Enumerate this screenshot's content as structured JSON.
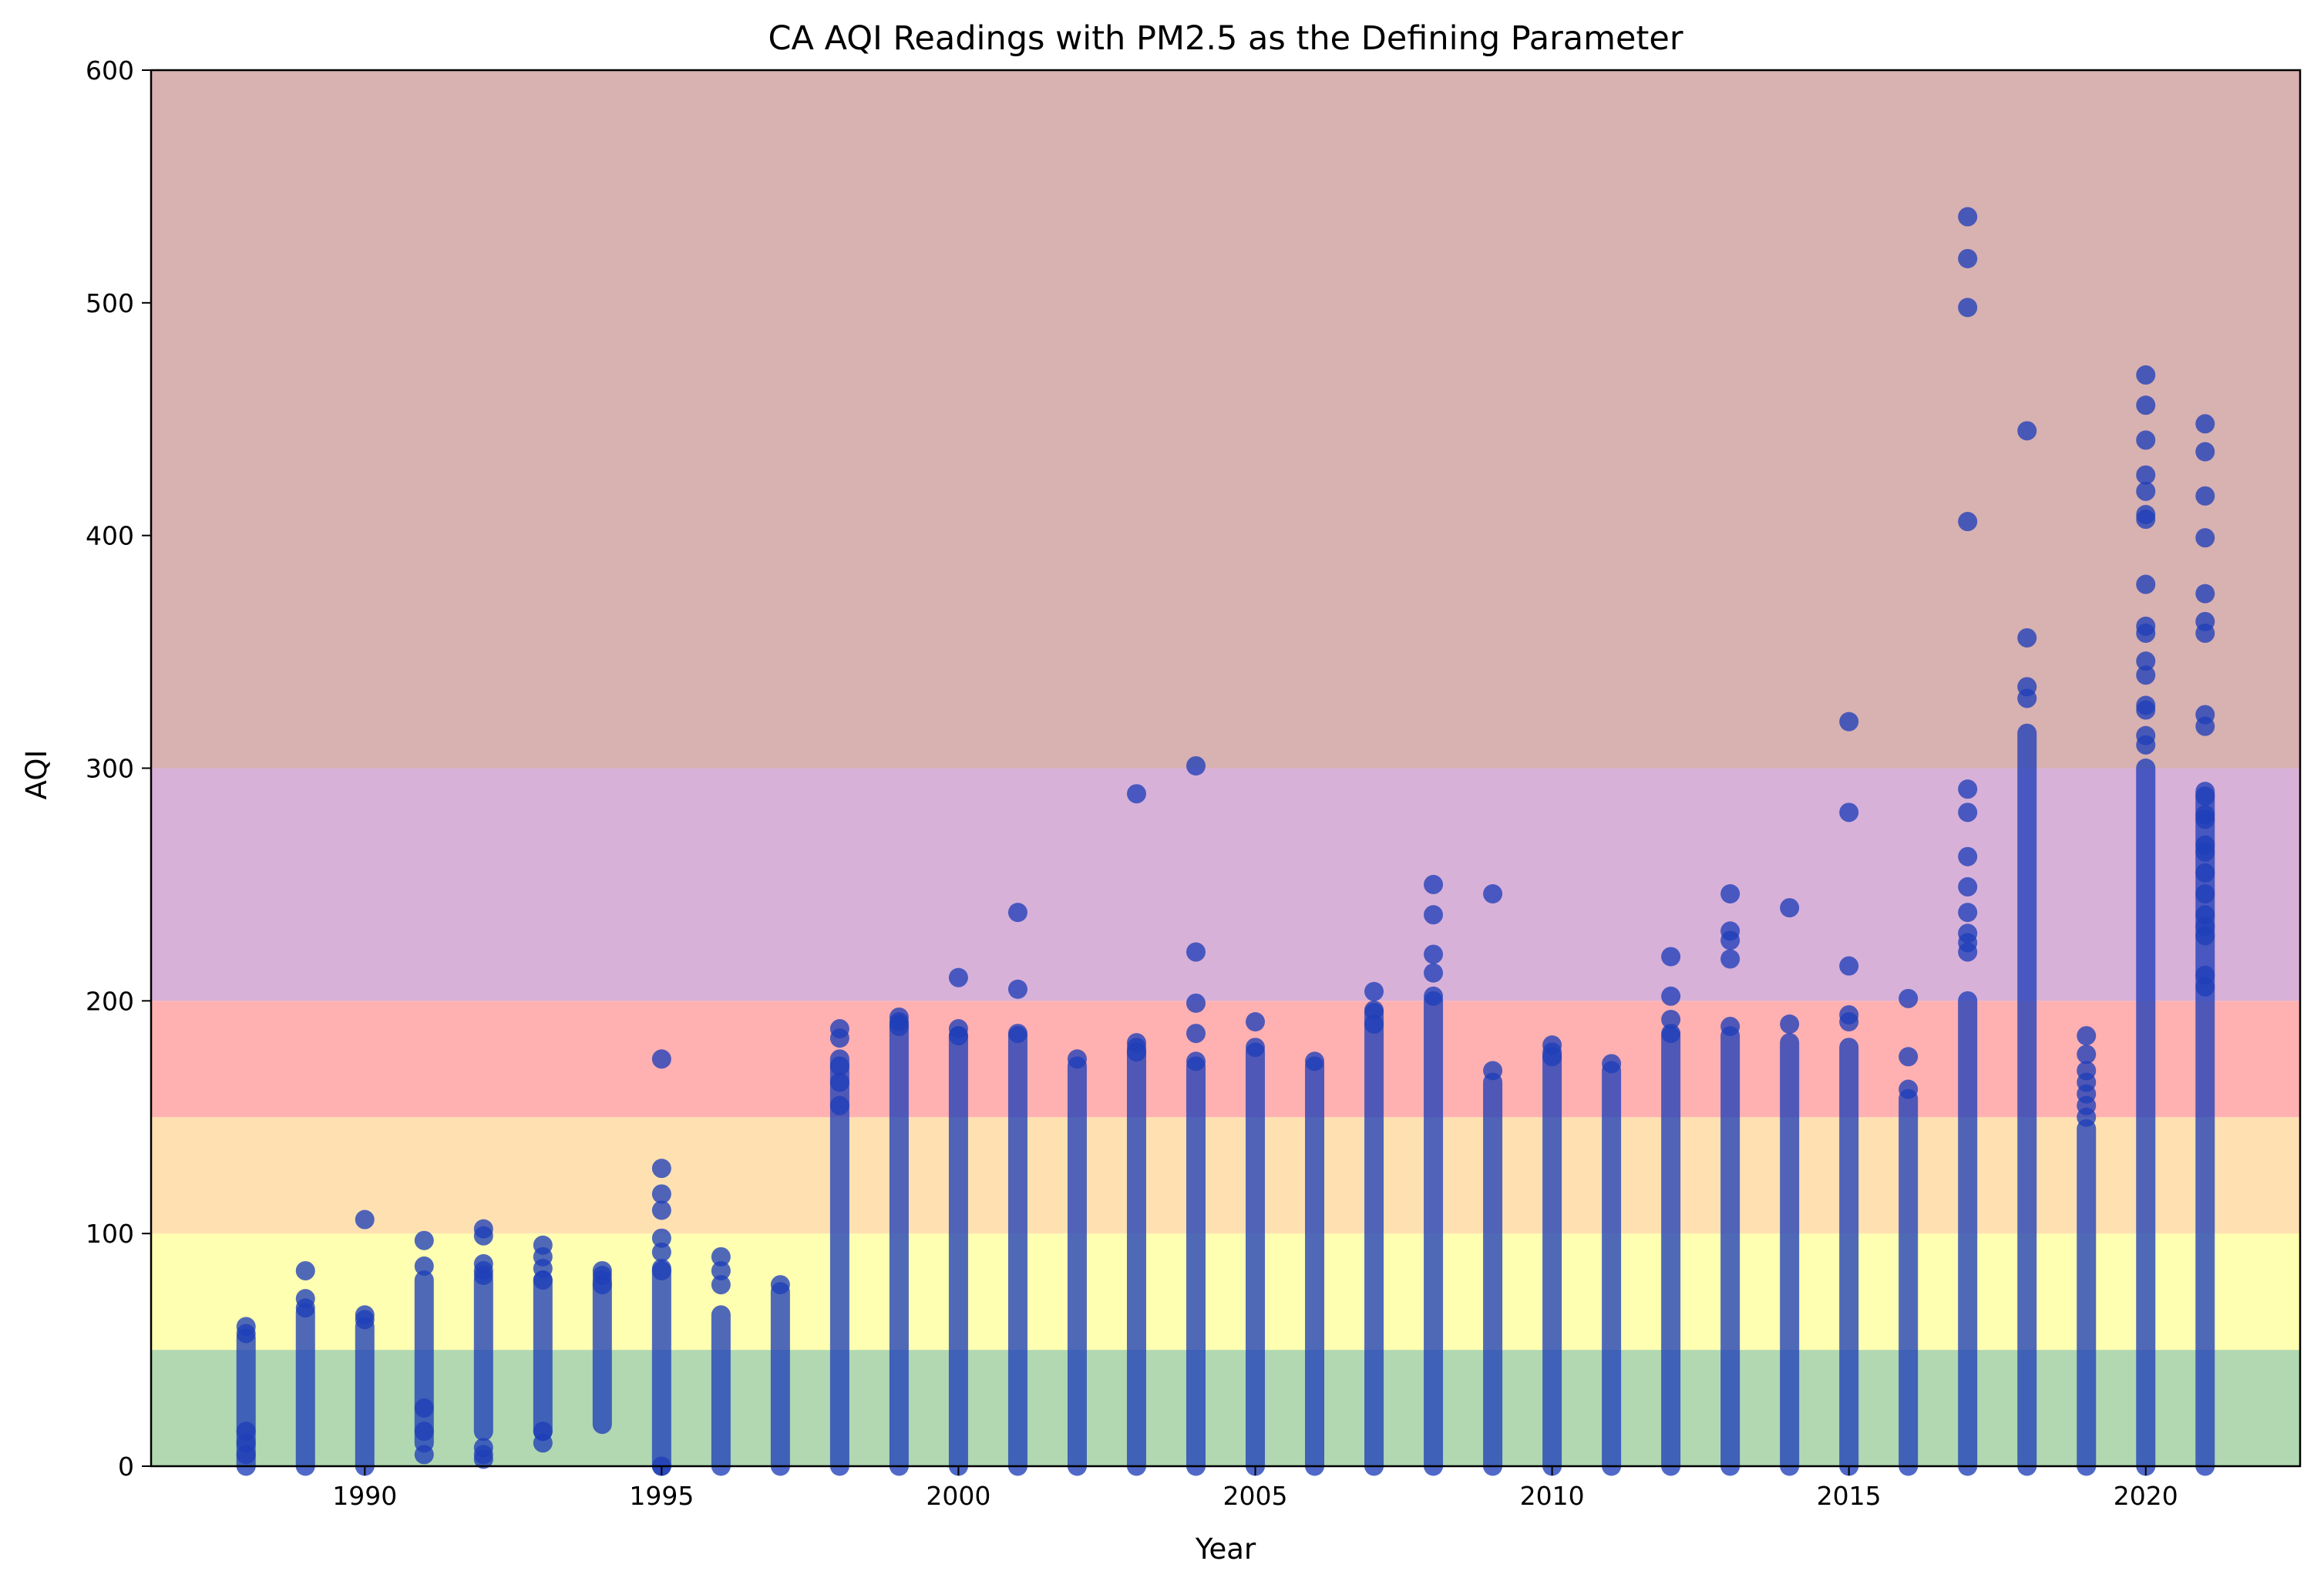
{
  "chart_data": {
    "type": "scatter",
    "title": "CA AQI Readings with PM2.5 as the Defining Parameter",
    "xlabel": "Year",
    "ylabel": "AQI",
    "xlim": [
      1986.4,
      2022.6
    ],
    "ylim": [
      0,
      600
    ],
    "xticks": [
      1990,
      1995,
      2000,
      2005,
      2010,
      2015,
      2020
    ],
    "yticks": [
      0,
      100,
      200,
      300,
      400,
      500,
      600
    ],
    "grid": false,
    "legend": "none",
    "point_color": "#1f3fb8",
    "point_alpha": 0.78,
    "bands": [
      {
        "from": 0,
        "to": 50,
        "color": "#b1d8b1"
      },
      {
        "from": 50,
        "to": 100,
        "color": "#ffffb1"
      },
      {
        "from": 100,
        "to": 150,
        "color": "#ffe1b1"
      },
      {
        "from": 150,
        "to": 200,
        "color": "#ffb1b1"
      },
      {
        "from": 200,
        "to": 300,
        "color": "#d8b1d8"
      },
      {
        "from": 300,
        "to": 600,
        "color": "#d8b1b1"
      }
    ],
    "series": [
      {
        "points": [
          {
            "year": 1988,
            "dense": [
              0,
              55
            ],
            "extra": [
              60,
              57,
              5,
              10,
              15
            ]
          },
          {
            "year": 1989,
            "dense": [
              0,
              66
            ],
            "extra": [
              84,
              72,
              68
            ]
          },
          {
            "year": 1990,
            "dense": [
              0,
              60
            ],
            "extra": [
              106,
              65,
              63
            ]
          },
          {
            "year": 1991,
            "dense": [
              10,
              80
            ],
            "extra": [
              97,
              86,
              5,
              15,
              25
            ]
          },
          {
            "year": 1992,
            "dense": [
              15,
              80
            ],
            "extra": [
              102,
              99,
              87,
              84,
              82,
              5,
              8,
              3
            ]
          },
          {
            "year": 1993,
            "dense": [
              15,
              80
            ],
            "extra": [
              95,
              90,
              85,
              80,
              10,
              15
            ]
          },
          {
            "year": 1994,
            "dense": [
              18,
              80
            ],
            "extra": [
              84,
              82,
              78
            ]
          },
          {
            "year": 1995,
            "dense": [
              0,
              85
            ],
            "extra": [
              175,
              128,
              117,
              110,
              98,
              92,
              84,
              0
            ]
          },
          {
            "year": 1996,
            "dense": [
              0,
              65
            ],
            "extra": [
              90,
              84,
              78
            ]
          },
          {
            "year": 1997,
            "dense": [
              0,
              75
            ],
            "extra": [
              78
            ]
          },
          {
            "year": 1998,
            "dense": [
              0,
              175
            ],
            "extra": [
              188,
              184,
              172,
              165,
              155
            ]
          },
          {
            "year": 1999,
            "dense": [
              0,
              190
            ],
            "extra": [
              193,
              191,
              189
            ]
          },
          {
            "year": 2000,
            "dense": [
              0,
              185
            ],
            "extra": [
              210,
              188,
              185
            ]
          },
          {
            "year": 2001,
            "dense": [
              0,
              185
            ],
            "extra": [
              238,
              205,
              186
            ]
          },
          {
            "year": 2002,
            "dense": [
              0,
              172
            ],
            "extra": [
              175
            ]
          },
          {
            "year": 2003,
            "dense": [
              0,
              180
            ],
            "extra": [
              289,
              182,
              178
            ]
          },
          {
            "year": 2004,
            "dense": [
              0,
              172
            ],
            "extra": [
              301,
              221,
              199,
              186,
              174
            ]
          },
          {
            "year": 2005,
            "dense": [
              0,
              178
            ],
            "extra": [
              191,
              180
            ]
          },
          {
            "year": 2006,
            "dense": [
              0,
              172
            ],
            "extra": [
              174
            ]
          },
          {
            "year": 2007,
            "dense": [
              0,
              195
            ],
            "extra": [
              204,
              196,
              190
            ]
          },
          {
            "year": 2008,
            "dense": [
              0,
              200
            ],
            "extra": [
              250,
              237,
              220,
              212,
              202
            ]
          },
          {
            "year": 2009,
            "dense": [
              0,
              165
            ],
            "extra": [
              246,
              170
            ]
          },
          {
            "year": 2010,
            "dense": [
              0,
              178
            ],
            "extra": [
              181,
              176
            ]
          },
          {
            "year": 2011,
            "dense": [
              0,
              170
            ],
            "extra": [
              173
            ]
          },
          {
            "year": 2012,
            "dense": [
              0,
              185
            ],
            "extra": [
              219,
              202,
              192,
              186
            ]
          },
          {
            "year": 2013,
            "dense": [
              0,
              185
            ],
            "extra": [
              246,
              230,
              226,
              218,
              189
            ]
          },
          {
            "year": 2014,
            "dense": [
              0,
              182
            ],
            "extra": [
              240,
              190
            ]
          },
          {
            "year": 2015,
            "dense": [
              0,
              180
            ],
            "extra": [
              320,
              281,
              215,
              194,
              191
            ]
          },
          {
            "year": 2016,
            "dense": [
              0,
              158
            ],
            "extra": [
              201,
              176,
              162
            ]
          },
          {
            "year": 2017,
            "dense": [
              0,
              200
            ],
            "extra": [
              537,
              519,
              498,
              406,
              291,
              281,
              262,
              249,
              238,
              229,
              225,
              221
            ]
          },
          {
            "year": 2018,
            "dense": [
              0,
              315
            ],
            "extra": [
              445,
              356,
              335,
              330
            ]
          },
          {
            "year": 2019,
            "dense": [
              0,
              145
            ],
            "extra": [
              185,
              177,
              170,
              165,
              160,
              155,
              150
            ]
          },
          {
            "year": 2020,
            "dense": [
              0,
              300
            ],
            "extra": [
              469,
              456,
              441,
              426,
              419,
              409,
              407,
              379,
              361,
              358,
              346,
              340,
              327,
              325,
              314,
              310
            ]
          },
          {
            "year": 2021,
            "dense": [
              0,
              290
            ],
            "extra": [
              448,
              436,
              417,
              399,
              375,
              363,
              358,
              323,
              318,
              288,
              280,
              278,
              267,
              264,
              255,
              246,
              237,
              232,
              228,
              211,
              206
            ]
          }
        ]
      }
    ]
  }
}
